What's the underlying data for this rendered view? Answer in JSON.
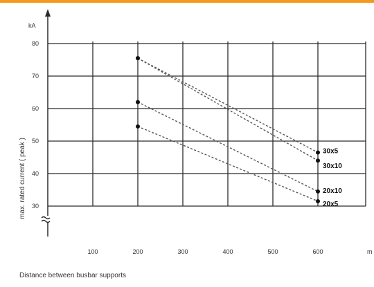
{
  "colors": {
    "top_rule": "#f39a1e",
    "grid": "#2b2b2b",
    "series_line": "#555555",
    "text": "#333333",
    "background": "#ffffff"
  },
  "caption": "Distance between busbar supports",
  "chart_data": {
    "type": "line",
    "title": "",
    "xlabel": "Distance between busbar supports",
    "x_unit": "m",
    "ylabel": "max. rated current ( peak )",
    "y_unit": "kA",
    "xlim": [
      0,
      700
    ],
    "ylim": [
      30,
      80
    ],
    "y_axis_break": true,
    "grid": true,
    "line_style": "dashed",
    "x_ticks": [
      100,
      200,
      300,
      400,
      500,
      600
    ],
    "y_ticks": [
      30,
      40,
      50,
      60,
      70,
      80
    ],
    "series": [
      {
        "name": "30x5",
        "x": [
          200,
          600
        ],
        "y": [
          75.5,
          46.5
        ]
      },
      {
        "name": "30x10",
        "x": [
          200,
          600
        ],
        "y": [
          75.5,
          44.0
        ]
      },
      {
        "name": "20x10",
        "x": [
          200,
          600
        ],
        "y": [
          62.0,
          34.5
        ]
      },
      {
        "name": "20x5",
        "x": [
          200,
          600
        ],
        "y": [
          54.5,
          31.5
        ]
      }
    ]
  }
}
